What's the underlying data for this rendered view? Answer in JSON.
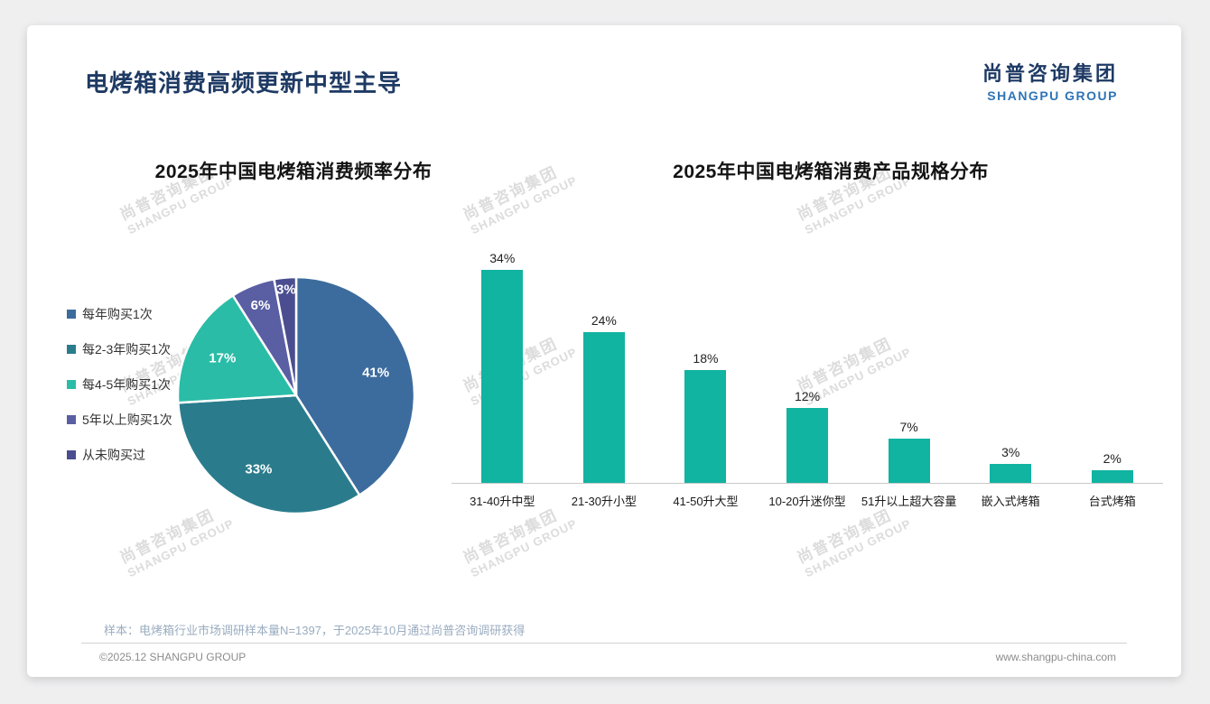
{
  "page": {
    "title": "电烤箱消费高频更新中型主导",
    "logo": {
      "cn": "尚普咨询集团",
      "en": "SHANGPU GROUP"
    },
    "watermark": {
      "line1": "尚普咨询集团",
      "line2": "SHANGPU GROUP"
    },
    "footer": {
      "note": "样本：电烤箱行业市场调研样本量N=1397，于2025年10月通过尚普咨询调研获得",
      "copyright": "©2025.12 SHANGPU GROUP",
      "website": "www.shangpu-china.com"
    }
  },
  "chart_data": [
    {
      "type": "pie",
      "title": "2025年中国电烤箱消费频率分布",
      "labels": [
        "每年购买1次",
        "每2-3年购买1次",
        "每4-5年购买1次",
        "5年以上购买1次",
        "从未购买过"
      ],
      "values": [
        41,
        33,
        17,
        6,
        3
      ],
      "data_labels": [
        "41%",
        "33%",
        "17%",
        "6%",
        "3%"
      ],
      "colors": [
        "#3C6C9D",
        "#2A7C8C",
        "#2ABCA6",
        "#5A5EA3",
        "#4A4D8F"
      ],
      "legend_position": "left",
      "start_angle_deg": 0,
      "direction": "clockwise"
    },
    {
      "type": "bar",
      "title": "2025年中国电烤箱消费产品规格分布",
      "categories": [
        "31-40升中型",
        "21-30升小型",
        "41-50升大型",
        "10-20升迷你型",
        "51升以上超大容量",
        "嵌入式烤箱",
        "台式烤箱"
      ],
      "values": [
        34,
        24,
        18,
        12,
        7,
        3,
        2
      ],
      "data_labels": [
        "34%",
        "24%",
        "18%",
        "12%",
        "7%",
        "3%",
        "2%"
      ],
      "bar_color": "#11B3A1",
      "ylim": [
        0,
        36
      ],
      "grid": false,
      "legend_position": "none"
    }
  ]
}
